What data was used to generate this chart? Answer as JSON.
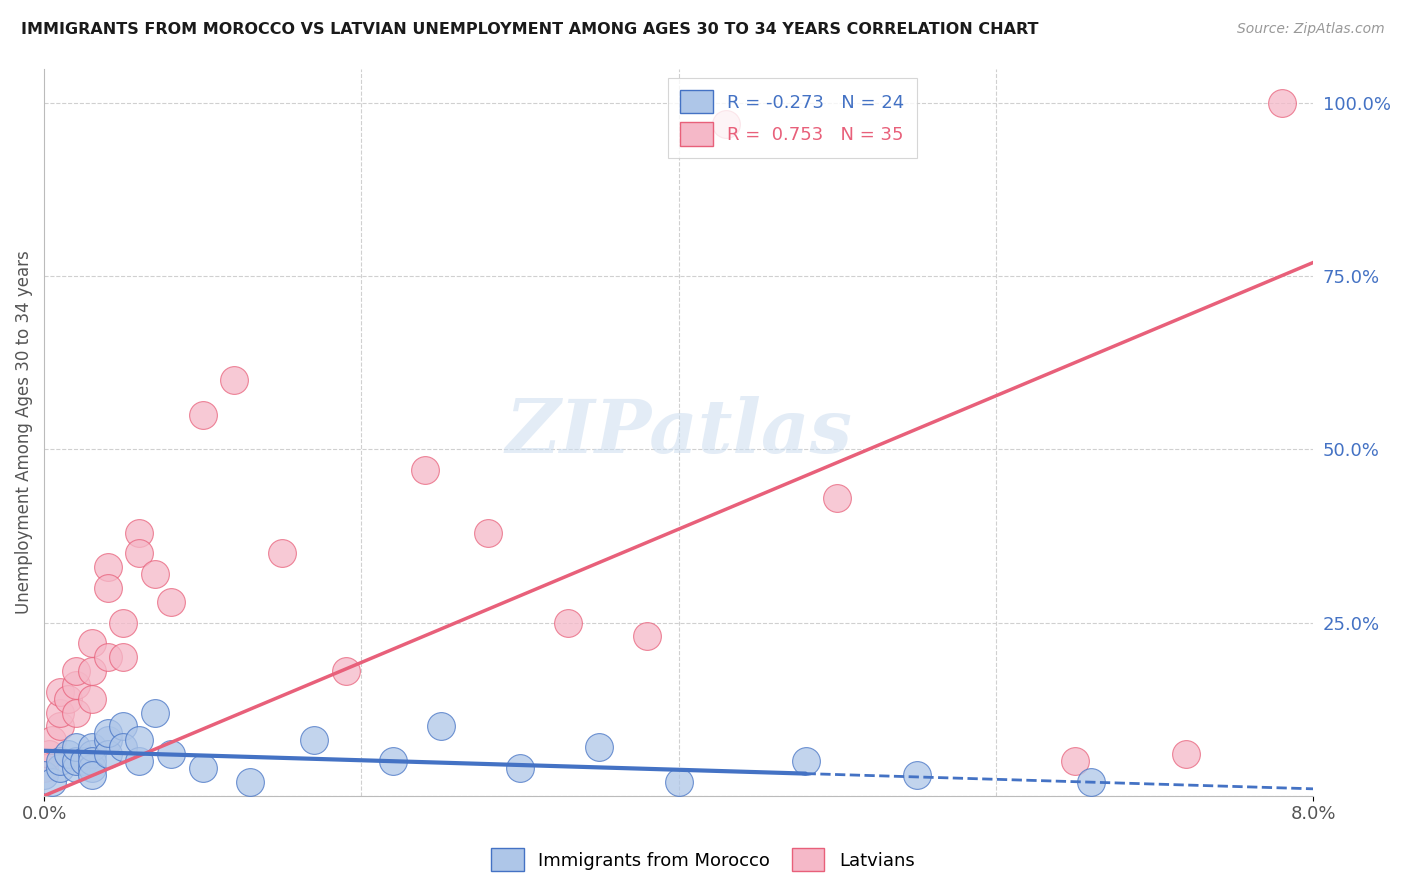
{
  "title": "IMMIGRANTS FROM MOROCCO VS LATVIAN UNEMPLOYMENT AMONG AGES 30 TO 34 YEARS CORRELATION CHART",
  "source": "Source: ZipAtlas.com",
  "ylabel": "Unemployment Among Ages 30 to 34 years",
  "xlim": [
    0.0,
    0.08
  ],
  "ylim": [
    0.0,
    1.05
  ],
  "y_ticks_right": [
    1.0,
    0.75,
    0.5,
    0.25,
    0.0
  ],
  "y_tick_labels_right": [
    "100.0%",
    "75.0%",
    "50.0%",
    "25.0%",
    ""
  ],
  "grid_color": "#d0d0d0",
  "background_color": "#ffffff",
  "morocco_color": "#aec6e8",
  "latvian_color": "#f5b8c8",
  "morocco_line_color": "#4472c4",
  "latvian_line_color": "#e8607a",
  "title_color": "#1a1a1a",
  "source_color": "#999999",
  "axis_label_color": "#555555",
  "right_tick_color": "#4472c4",
  "morocco_scatter_x": [
    0.0,
    0.0005,
    0.001,
    0.001,
    0.0015,
    0.002,
    0.002,
    0.002,
    0.0025,
    0.003,
    0.003,
    0.003,
    0.003,
    0.003,
    0.004,
    0.004,
    0.004,
    0.005,
    0.005,
    0.006,
    0.006,
    0.007,
    0.008,
    0.01,
    0.013,
    0.017,
    0.022,
    0.025,
    0.03,
    0.035,
    0.04,
    0.048,
    0.055,
    0.066
  ],
  "morocco_scatter_y": [
    0.03,
    0.02,
    0.04,
    0.05,
    0.06,
    0.04,
    0.05,
    0.07,
    0.05,
    0.06,
    0.04,
    0.07,
    0.05,
    0.03,
    0.08,
    0.06,
    0.09,
    0.1,
    0.07,
    0.05,
    0.08,
    0.12,
    0.06,
    0.04,
    0.02,
    0.08,
    0.05,
    0.1,
    0.04,
    0.07,
    0.02,
    0.05,
    0.03,
    0.02
  ],
  "latvian_scatter_x": [
    0.0,
    0.0003,
    0.0005,
    0.001,
    0.001,
    0.001,
    0.0015,
    0.002,
    0.002,
    0.002,
    0.003,
    0.003,
    0.003,
    0.004,
    0.004,
    0.004,
    0.005,
    0.005,
    0.006,
    0.006,
    0.007,
    0.008,
    0.01,
    0.012,
    0.015,
    0.019,
    0.024,
    0.028,
    0.033,
    0.038,
    0.043,
    0.05,
    0.065,
    0.072,
    0.078
  ],
  "latvian_scatter_y": [
    0.04,
    0.06,
    0.08,
    0.1,
    0.12,
    0.15,
    0.14,
    0.16,
    0.12,
    0.18,
    0.14,
    0.18,
    0.22,
    0.2,
    0.33,
    0.3,
    0.25,
    0.2,
    0.38,
    0.35,
    0.32,
    0.28,
    0.55,
    0.6,
    0.35,
    0.18,
    0.47,
    0.38,
    0.25,
    0.23,
    0.97,
    0.43,
    0.05,
    0.06,
    1.0
  ],
  "solid_line_end_x": 0.048,
  "latvian_line_y_at_0": 0.0,
  "latvian_line_y_at_008": 0.77,
  "morocco_line_y_at_0": 0.065,
  "morocco_line_y_at_008": 0.01
}
